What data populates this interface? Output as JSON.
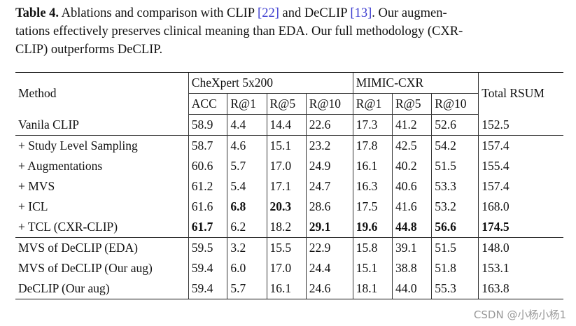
{
  "caption": {
    "label": "Table 4.",
    "lines": [
      [
        "Ablations and comparison with CLIP ",
        "[22]",
        " and DeCLIP ",
        "[13]",
        ". Our augmen-"
      ],
      [
        "tations effectively preserves clinical meaning than EDA. Our full methodology (CXR-"
      ],
      [
        "CLIP) outperforms DeCLIP."
      ]
    ]
  },
  "table": {
    "header": {
      "method": "Method",
      "groups": [
        "CheXpert 5x200",
        "MIMIC-CXR"
      ],
      "total": "Total RSUM",
      "sub": [
        [
          "ACC",
          "R@1",
          "R@5",
          "R@10"
        ],
        [
          "R@1",
          "R@5",
          "R@10"
        ]
      ]
    },
    "rows": [
      [
        "Vanila CLIP",
        "58.9",
        "4.4",
        "14.4",
        "22.6",
        "17.3",
        "41.2",
        "52.6",
        "152.5"
      ],
      [
        "+ Study Level Sampling",
        "58.7",
        "4.6",
        "15.1",
        "23.2",
        "17.8",
        "42.5",
        "54.2",
        "157.4"
      ],
      [
        "+ Augmentations",
        "60.6",
        "5.7",
        "17.0",
        "24.9",
        "16.1",
        "40.2",
        "51.5",
        "155.4"
      ],
      [
        "+ MVS",
        "61.2",
        "5.4",
        "17.1",
        "24.7",
        "16.3",
        "40.6",
        "53.3",
        "157.4"
      ],
      [
        "+ ICL",
        "61.6",
        "6.8",
        "20.3",
        "28.6",
        "17.5",
        "41.6",
        "53.2",
        "168.0"
      ],
      [
        "+ TCL (CXR-CLIP)",
        "61.7",
        "6.2",
        "18.2",
        "29.1",
        "19.6",
        "44.8",
        "56.6",
        "174.5"
      ],
      [
        "MVS of DeCLIP (EDA)",
        "59.5",
        "3.2",
        "15.5",
        "22.9",
        "15.8",
        "39.1",
        "51.5",
        "148.0"
      ],
      [
        "MVS of DeCLIP (Our aug)",
        "59.4",
        "6.0",
        "17.0",
        "24.4",
        "15.1",
        "38.8",
        "51.8",
        "153.1"
      ],
      [
        "DeCLIP (Our aug)",
        "59.4",
        "5.7",
        "16.1",
        "24.6",
        "18.1",
        "44.0",
        "55.3",
        "163.8"
      ]
    ],
    "bold_cells": [
      [
        4,
        2
      ],
      [
        4,
        3
      ],
      [
        5,
        1
      ],
      [
        5,
        4
      ],
      [
        5,
        5
      ],
      [
        5,
        6
      ],
      [
        5,
        7
      ],
      [
        5,
        8
      ]
    ],
    "group_breaks_after": [
      0,
      5
    ]
  },
  "watermark": "CSDN @小杨小杨1"
}
